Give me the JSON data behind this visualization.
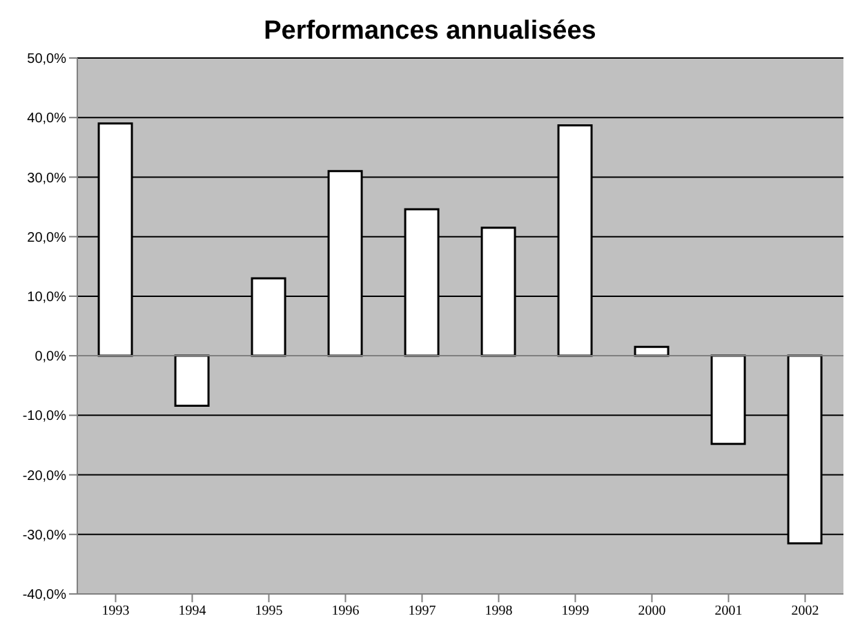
{
  "chart_data": {
    "type": "bar",
    "title": "Performances annualisées",
    "categories": [
      "1993",
      "1994",
      "1995",
      "1996",
      "1997",
      "1998",
      "1999",
      "2000",
      "2001",
      "2002"
    ],
    "values": [
      39,
      -8.4,
      13,
      31,
      24.6,
      21.5,
      38.7,
      1.5,
      -14.8,
      -31.5
    ],
    "color": "#ffffff",
    "ylim": [
      -40,
      50
    ],
    "yticks": [
      {
        "value": -40,
        "label": "-40,0%"
      },
      {
        "value": -30,
        "label": "-30,0%"
      },
      {
        "value": -20,
        "label": "-20,0%"
      },
      {
        "value": -10,
        "label": "-10,0%"
      },
      {
        "value": 0,
        "label": "0,0%"
      },
      {
        "value": 10,
        "label": "10,0%"
      },
      {
        "value": 20,
        "label": "20,0%"
      },
      {
        "value": 30,
        "label": "30,0%"
      },
      {
        "value": 40,
        "label": "40,0%"
      },
      {
        "value": 50,
        "label": "50,0%"
      }
    ],
    "grid": "y"
  }
}
